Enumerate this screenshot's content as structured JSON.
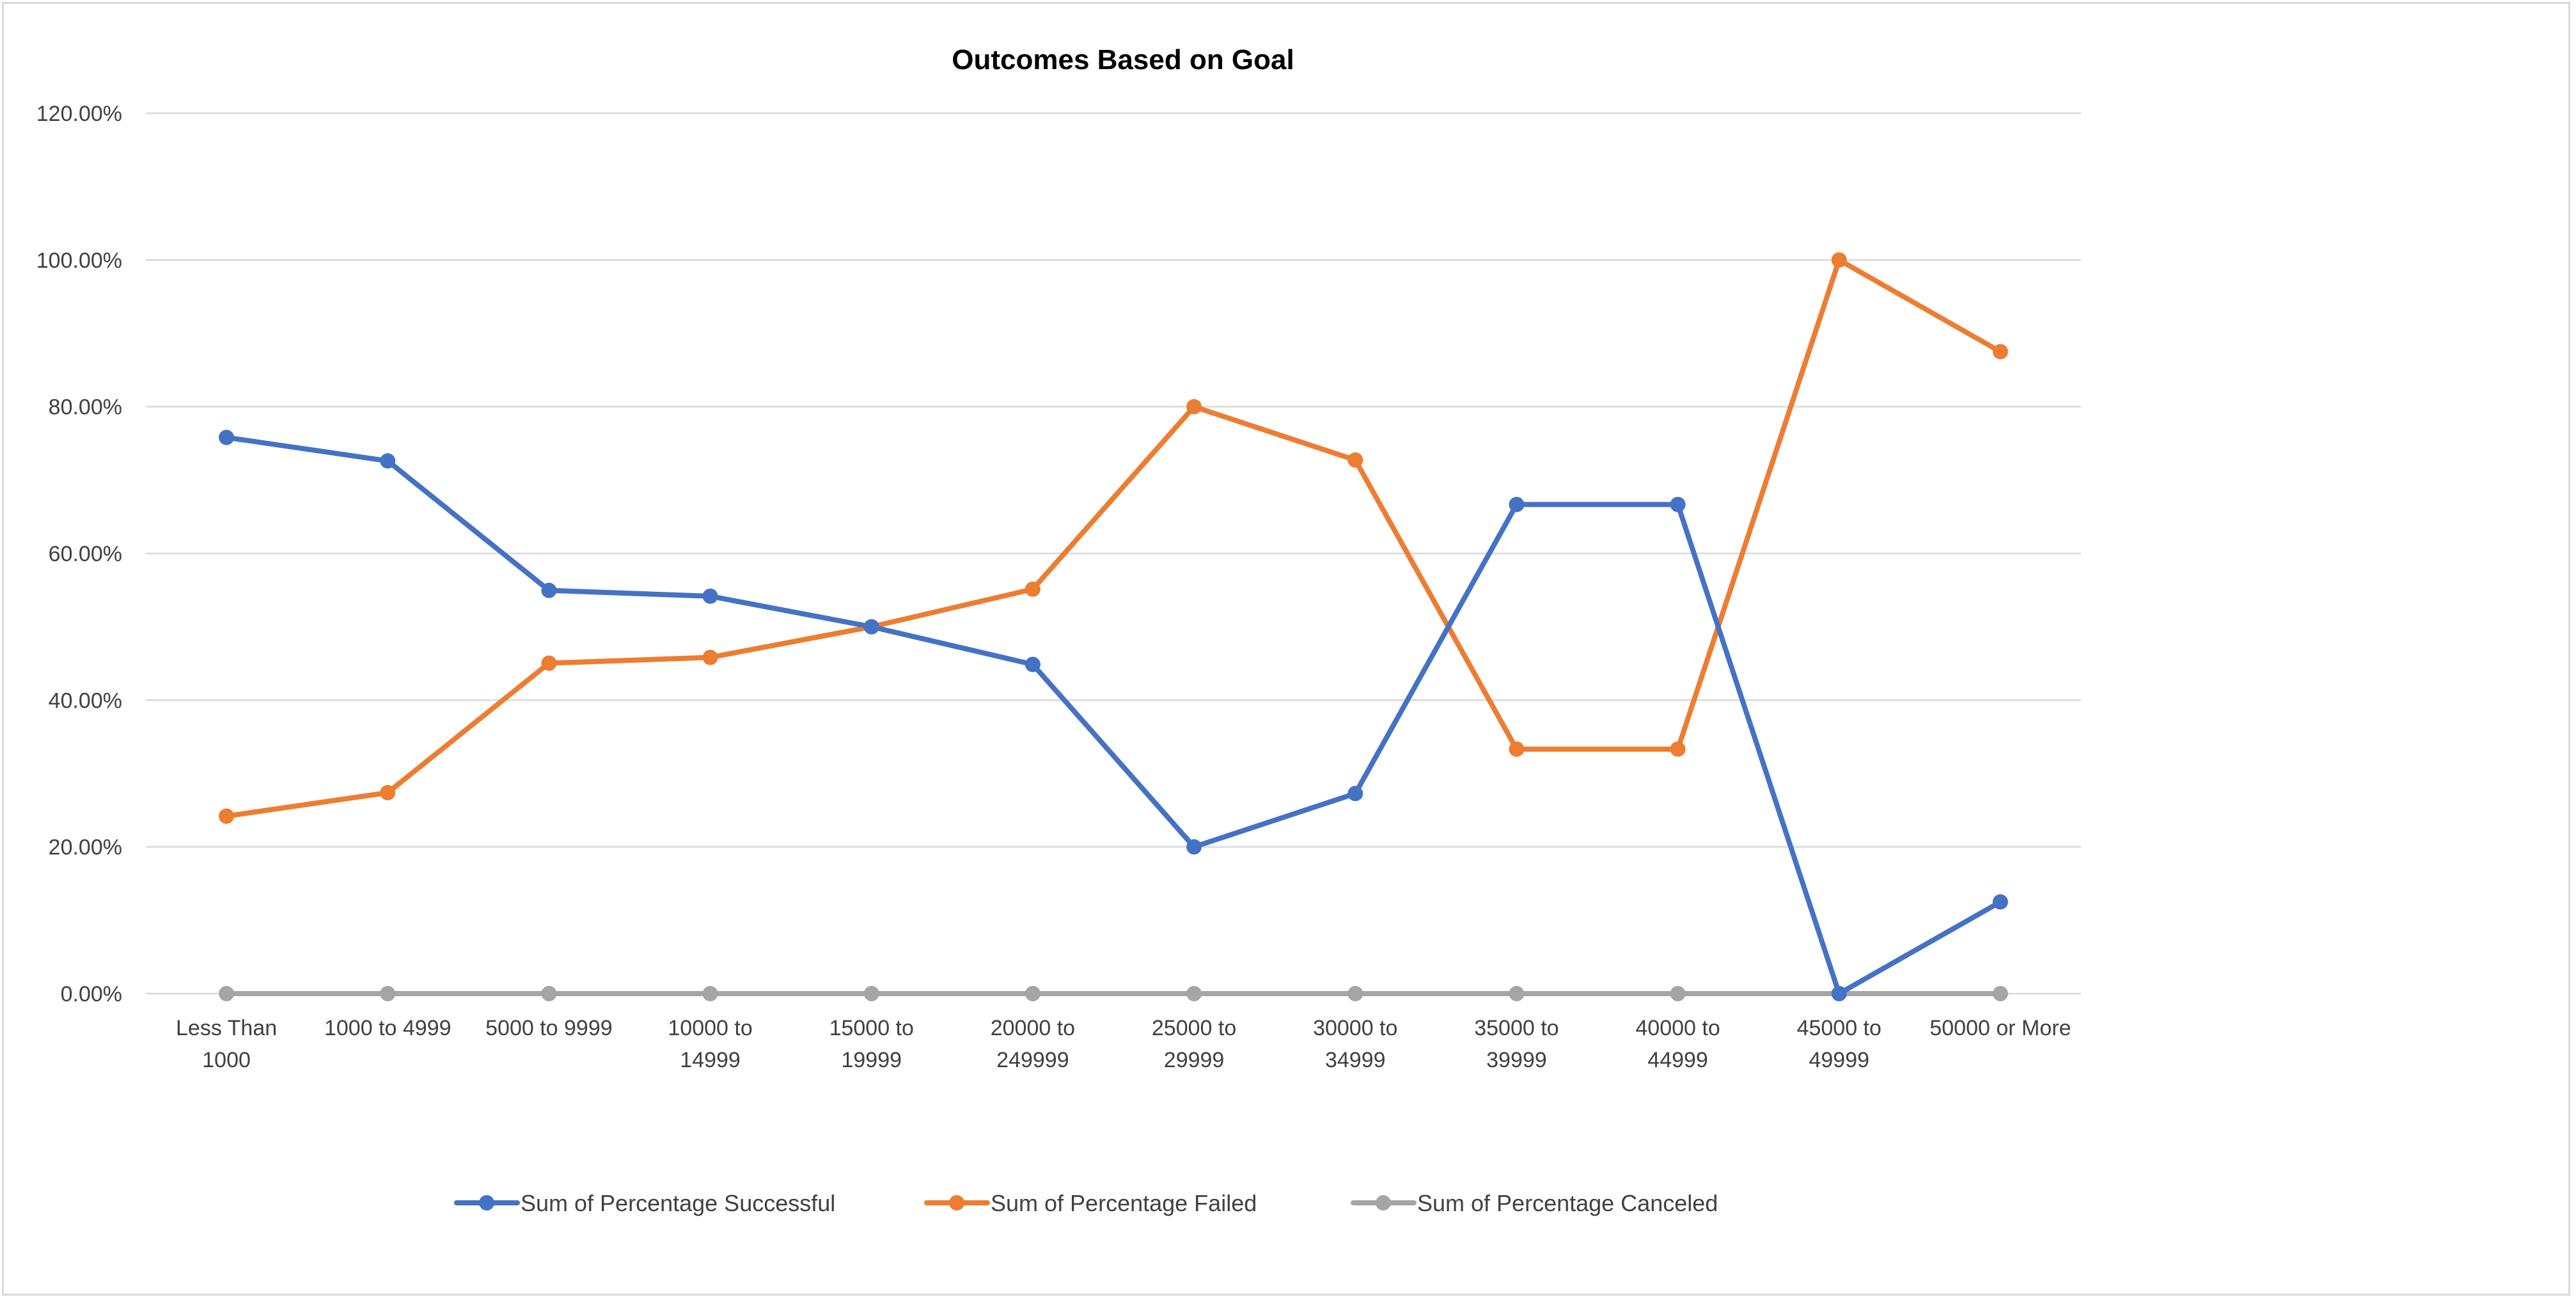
{
  "chart_data": {
    "type": "line",
    "title": "Outcomes Based on Goal",
    "xlabel": "",
    "ylabel": "",
    "categories": [
      [
        "Less Than",
        "1000"
      ],
      [
        "1000 to 4999"
      ],
      [
        "5000 to 9999"
      ],
      [
        "10000 to",
        "14999"
      ],
      [
        "15000 to",
        "19999"
      ],
      [
        "20000 to",
        "249999"
      ],
      [
        "25000 to",
        "29999"
      ],
      [
        "30000 to",
        "34999"
      ],
      [
        "35000 to",
        "39999"
      ],
      [
        "40000 to",
        "44999"
      ],
      [
        "45000 to",
        "49999"
      ],
      [
        "50000 or More"
      ]
    ],
    "ylim": [
      0,
      120
    ],
    "yticks": [
      "0.00%",
      "20.00%",
      "40.00%",
      "60.00%",
      "80.00%",
      "100.00%",
      "120.00%"
    ],
    "grid": true,
    "legend_position": "bottom",
    "series": [
      {
        "name": "Sum of Percentage Successful",
        "color": "#4472c4",
        "values": [
          75.81,
          72.61,
          54.96,
          54.17,
          50.0,
          44.87,
          20.0,
          27.27,
          66.67,
          66.67,
          0.0,
          12.5
        ]
      },
      {
        "name": "Sum of Percentage Failed",
        "color": "#ed7d31",
        "values": [
          24.19,
          27.39,
          45.04,
          45.83,
          50.0,
          55.13,
          80.0,
          72.73,
          33.33,
          33.33,
          100.0,
          87.5
        ]
      },
      {
        "name": "Sum of Percentage Canceled",
        "color": "#a5a5a5",
        "values": [
          0,
          0,
          0,
          0,
          0,
          0,
          0,
          0,
          0,
          0,
          0,
          0
        ]
      }
    ]
  }
}
